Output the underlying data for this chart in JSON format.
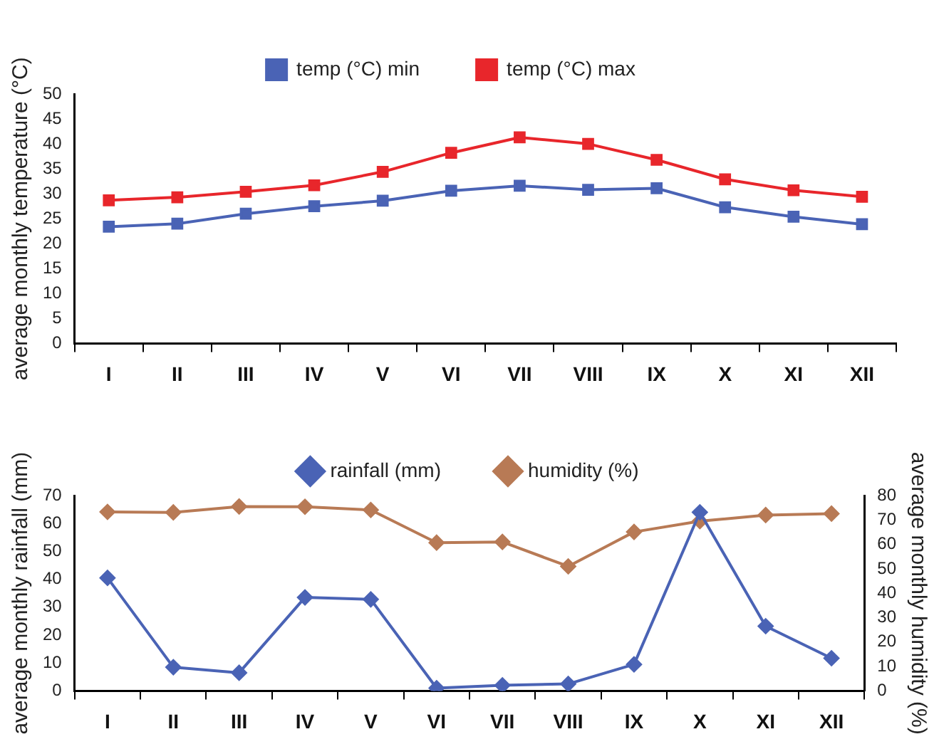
{
  "chart_data": [
    {
      "type": "line",
      "categories": [
        "I",
        "II",
        "III",
        "IV",
        "V",
        "VI",
        "VII",
        "VIII",
        "IX",
        "X",
        "XI",
        "XII"
      ],
      "series": [
        {
          "name": "temp (°C) min",
          "color": "#4a63b5",
          "values": [
            23.4,
            24.0,
            26.0,
            27.5,
            28.6,
            30.6,
            31.6,
            30.8,
            31.1,
            27.3,
            25.4,
            23.9
          ]
        },
        {
          "name": "temp (°C) max",
          "color": "#e8262b",
          "values": [
            28.7,
            29.3,
            30.4,
            31.7,
            34.4,
            38.2,
            41.3,
            40.0,
            36.8,
            32.9,
            30.7,
            29.4
          ]
        }
      ],
      "ylabel": "average monthly temperature (°C)",
      "ylim": [
        0,
        50
      ],
      "yticks": [
        0,
        5,
        10,
        15,
        20,
        25,
        30,
        35,
        40,
        45,
        50
      ],
      "grid": false,
      "legend": "top",
      "marker": "square"
    },
    {
      "type": "line",
      "categories": [
        "I",
        "II",
        "III",
        "IV",
        "V",
        "VI",
        "VII",
        "VIII",
        "IX",
        "X",
        "XI",
        "XII"
      ],
      "series": [
        {
          "name": "rainfall (mm)",
          "color": "#4a63b5",
          "values": [
            40.5,
            8.5,
            6.5,
            33.5,
            32.8,
            1.0,
            2.0,
            2.5,
            9.5,
            64.0,
            23.2,
            11.7
          ]
        },
        {
          "name": "humidity (%)",
          "color": "#b87a55",
          "axis": "y2",
          "values": [
            73.3,
            73.1,
            75.5,
            75.4,
            74.1,
            60.7,
            61.0,
            51.0,
            65.1,
            69.5,
            72.0,
            72.6
          ]
        }
      ],
      "ylabel": "average monthly rainfall (mm)",
      "y2label": "average monthly humidity (%)",
      "ylim": [
        0,
        70
      ],
      "yticks": [
        0,
        10,
        20,
        30,
        40,
        50,
        60,
        70
      ],
      "y2lim": [
        0,
        80
      ],
      "y2ticks": [
        0,
        10,
        20,
        30,
        40,
        50,
        60,
        70,
        80
      ],
      "grid": false,
      "legend": "top",
      "marker": "diamond"
    }
  ]
}
